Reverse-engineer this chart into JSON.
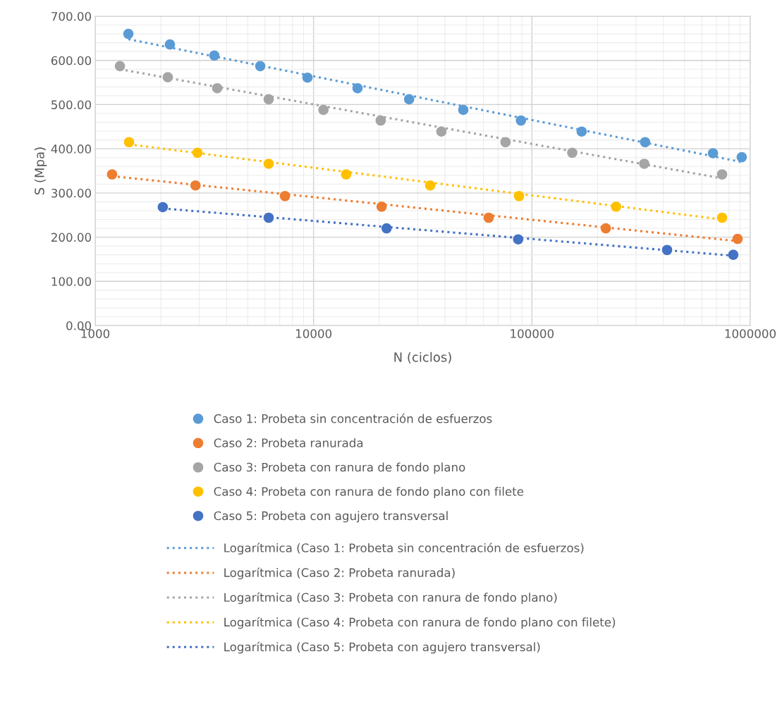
{
  "chart_data": {
    "type": "scatter",
    "xlabel": "N (ciclos)",
    "ylabel": "S (Mpa)",
    "log": "x",
    "grid": true,
    "legend": "bottom",
    "xlim": [
      1000,
      1000000
    ],
    "xticks": [
      1000,
      10000,
      100000,
      1000000
    ],
    "ylim": [
      0,
      700
    ],
    "yticks": [
      {
        "value": 0,
        "label": "0.00"
      },
      {
        "value": 100,
        "label": "100.00"
      },
      {
        "value": 200,
        "label": "200.00"
      },
      {
        "value": 300,
        "label": "300.00"
      },
      {
        "value": 400,
        "label": "400.00"
      },
      {
        "value": 500,
        "label": "500.00"
      },
      {
        "value": 600,
        "label": "600.00"
      },
      {
        "value": 700,
        "label": "700.00"
      }
    ],
    "series": [
      {
        "marker": "circle",
        "name": "Caso 1: Probeta sin concentración de esfuerzos",
        "color": "#5b9bd5",
        "x": [
          1419,
          2199,
          3513,
          5700,
          9380,
          15900,
          27400,
          48500,
          89100,
          169000,
          330000,
          675000,
          914000
        ],
        "values": [
          660,
          636,
          611,
          587,
          561,
          537,
          512,
          488,
          464,
          439,
          415,
          390,
          381
        ]
      },
      {
        "marker": "circle",
        "name": "Caso 2: Probeta ranurada",
        "color": "#ed7d31",
        "x": [
          1195,
          2880,
          7400,
          20500,
          63400,
          218000,
          875000
        ],
        "values": [
          342,
          317,
          293,
          269,
          244,
          220,
          196
        ]
      },
      {
        "marker": "circle",
        "name": "Caso 3: Probeta con ranura de fondo plano",
        "color": "#a5a5a5",
        "x": [
          1298,
          2150,
          3620,
          6230,
          11100,
          20300,
          38500,
          75700,
          153000,
          327000,
          743000
        ],
        "values": [
          587,
          562,
          537,
          512,
          488,
          464,
          439,
          415,
          391,
          366,
          342
        ]
      },
      {
        "marker": "circle",
        "name": "Caso 4: Probeta con ranura de fondo plano con filete",
        "color": "#ffc000",
        "x": [
          1429,
          2940,
          6230,
          14100,
          34200,
          87300,
          243000,
          743000
        ],
        "values": [
          415,
          391,
          366,
          342,
          317,
          293,
          269,
          244
        ]
      },
      {
        "marker": "circle",
        "name": "Caso 5: Probeta con agujero transversal",
        "color": "#4472c4",
        "x": [
          2040,
          6230,
          21600,
          86500,
          416000,
          836000
        ],
        "values": [
          268,
          244,
          220,
          195,
          171,
          160
        ]
      },
      {
        "type": "line",
        "line_style": "dotted",
        "name": "Logarítmica (Caso 1: Probeta sin concentración de esfuerzos)",
        "color": "#5b9bd5",
        "x": [
          1419,
          914000
        ],
        "values": [
          648,
          370
        ]
      },
      {
        "type": "line",
        "line_style": "dotted",
        "name": "Logarítmica (Caso 2: Probeta ranurada)",
        "color": "#ed7d31",
        "x": [
          1195,
          875000
        ],
        "values": [
          338,
          191
        ]
      },
      {
        "type": "line",
        "line_style": "dotted",
        "name": "Logarítmica (Caso 3: Probeta con ranura de fondo plano)",
        "color": "#a5a5a5",
        "x": [
          1298,
          743000
        ],
        "values": [
          580,
          333
        ]
      },
      {
        "type": "line",
        "line_style": "dotted",
        "name": "Logarítmica (Caso 4: Probeta con ranura de fondo plano con filete)",
        "color": "#ffc000",
        "x": [
          1429,
          743000
        ],
        "values": [
          410,
          240
        ]
      },
      {
        "type": "line",
        "line_style": "dotted",
        "name": "Logarítmica (Caso 5: Probeta con agujero transversal)",
        "color": "#4472c4",
        "x": [
          2040,
          836000
        ],
        "values": [
          265,
          158
        ]
      }
    ]
  }
}
